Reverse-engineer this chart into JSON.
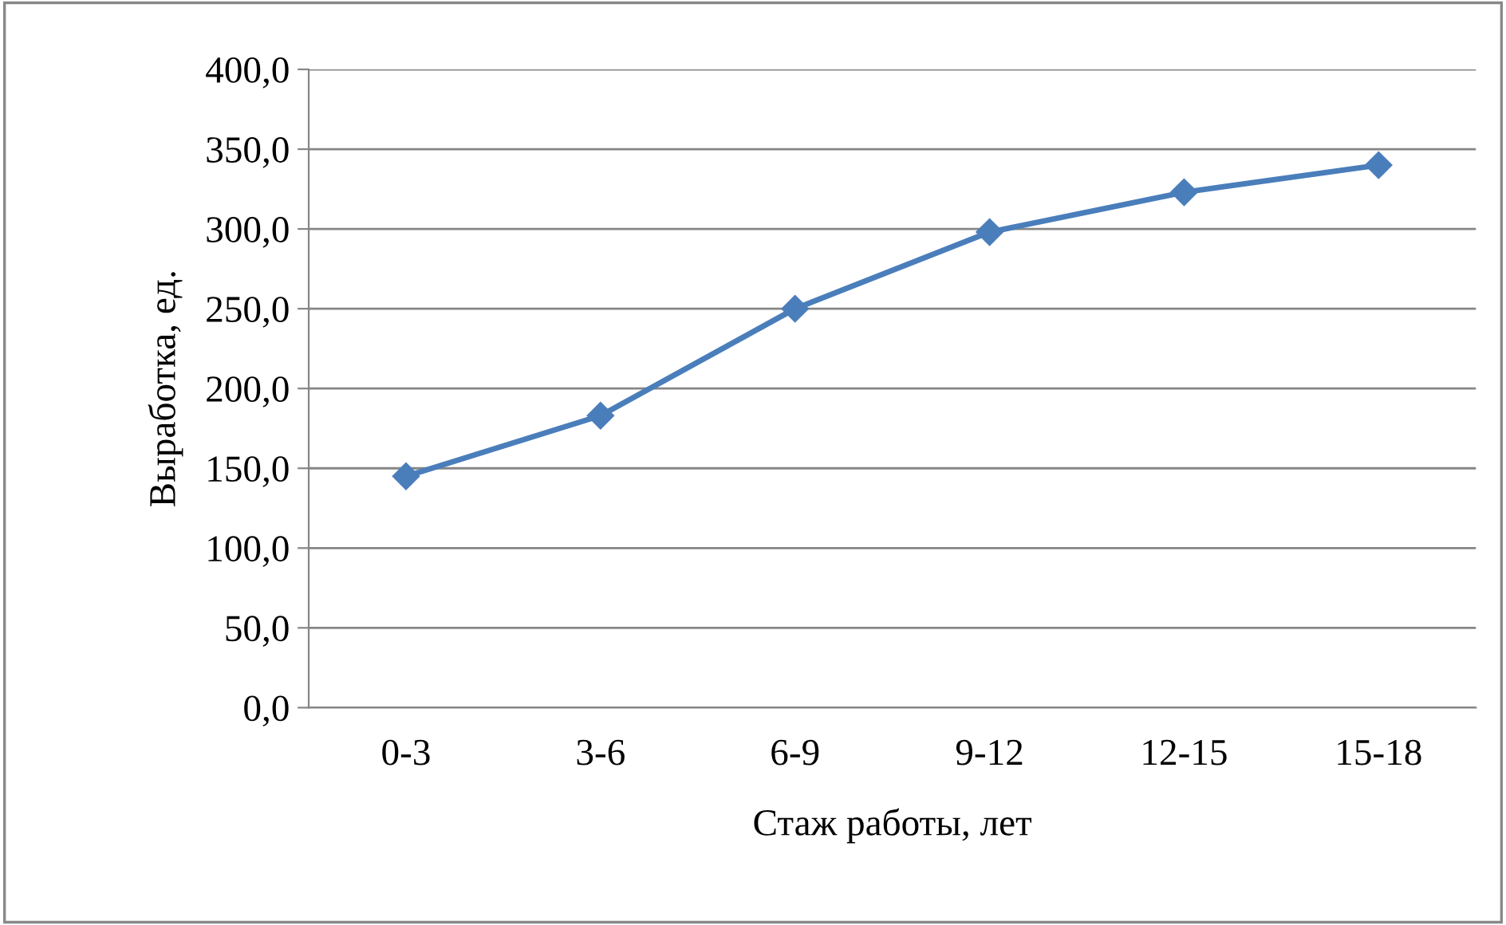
{
  "chart_data": {
    "type": "line",
    "xlabel": "Стаж работы, лет",
    "ylabel": "Выработка, ед.",
    "categories": [
      "0-3",
      "3-6",
      "6-9",
      "9-12",
      "12-15",
      "15-18"
    ],
    "series": [
      {
        "color": "#4a7ebb",
        "values": [
          145,
          183,
          250,
          298,
          323,
          340
        ]
      }
    ],
    "ylim": [
      0,
      400
    ],
    "yticks": [
      {
        "value": 0,
        "label": "0,0"
      },
      {
        "value": 50,
        "label": "50,0"
      },
      {
        "value": 100,
        "label": "100,0"
      },
      {
        "value": 150,
        "label": "150,0"
      },
      {
        "value": 200,
        "label": "200,0"
      },
      {
        "value": 250,
        "label": "250,0"
      },
      {
        "value": 300,
        "label": "300,0"
      },
      {
        "value": 350,
        "label": "350,0"
      },
      {
        "value": 400,
        "label": "400,0"
      }
    ],
    "grid": "y",
    "marker": "diamond",
    "line_style": "solid",
    "legend": false
  }
}
